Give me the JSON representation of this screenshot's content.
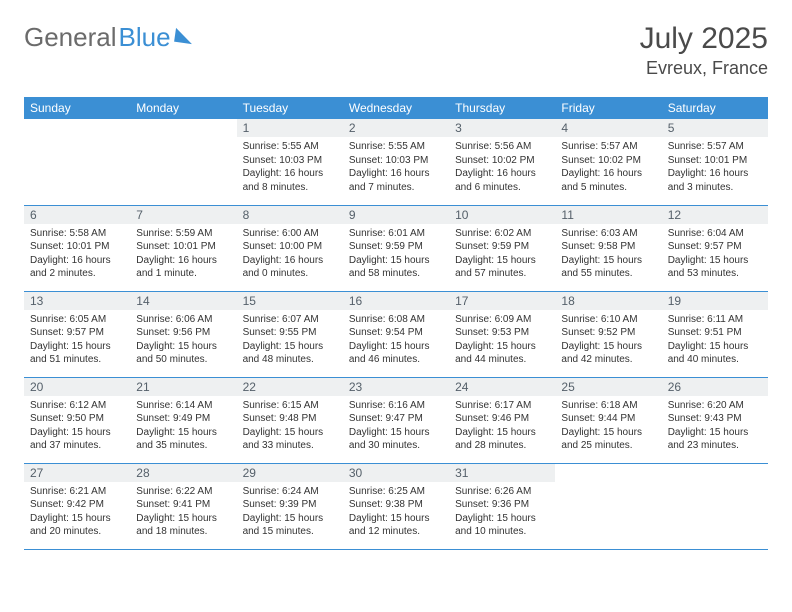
{
  "brand": {
    "part1": "General",
    "part2": "Blue"
  },
  "title": "July 2025",
  "location": "Evreux, France",
  "colors": {
    "header_bg": "#3b8fd4",
    "header_text": "#ffffff",
    "daynum_bg": "#eef0f1",
    "daynum_text": "#55606a",
    "divider": "#3b8fd4",
    "body_text": "#333333",
    "background": "#ffffff"
  },
  "weekdays": [
    "Sunday",
    "Monday",
    "Tuesday",
    "Wednesday",
    "Thursday",
    "Friday",
    "Saturday"
  ],
  "weeks": [
    [
      null,
      null,
      {
        "n": "1",
        "sunrise": "5:55 AM",
        "sunset": "10:03 PM",
        "daylight": "16 hours and 8 minutes."
      },
      {
        "n": "2",
        "sunrise": "5:55 AM",
        "sunset": "10:03 PM",
        "daylight": "16 hours and 7 minutes."
      },
      {
        "n": "3",
        "sunrise": "5:56 AM",
        "sunset": "10:02 PM",
        "daylight": "16 hours and 6 minutes."
      },
      {
        "n": "4",
        "sunrise": "5:57 AM",
        "sunset": "10:02 PM",
        "daylight": "16 hours and 5 minutes."
      },
      {
        "n": "5",
        "sunrise": "5:57 AM",
        "sunset": "10:01 PM",
        "daylight": "16 hours and 3 minutes."
      }
    ],
    [
      {
        "n": "6",
        "sunrise": "5:58 AM",
        "sunset": "10:01 PM",
        "daylight": "16 hours and 2 minutes."
      },
      {
        "n": "7",
        "sunrise": "5:59 AM",
        "sunset": "10:01 PM",
        "daylight": "16 hours and 1 minute."
      },
      {
        "n": "8",
        "sunrise": "6:00 AM",
        "sunset": "10:00 PM",
        "daylight": "16 hours and 0 minutes."
      },
      {
        "n": "9",
        "sunrise": "6:01 AM",
        "sunset": "9:59 PM",
        "daylight": "15 hours and 58 minutes."
      },
      {
        "n": "10",
        "sunrise": "6:02 AM",
        "sunset": "9:59 PM",
        "daylight": "15 hours and 57 minutes."
      },
      {
        "n": "11",
        "sunrise": "6:03 AM",
        "sunset": "9:58 PM",
        "daylight": "15 hours and 55 minutes."
      },
      {
        "n": "12",
        "sunrise": "6:04 AM",
        "sunset": "9:57 PM",
        "daylight": "15 hours and 53 minutes."
      }
    ],
    [
      {
        "n": "13",
        "sunrise": "6:05 AM",
        "sunset": "9:57 PM",
        "daylight": "15 hours and 51 minutes."
      },
      {
        "n": "14",
        "sunrise": "6:06 AM",
        "sunset": "9:56 PM",
        "daylight": "15 hours and 50 minutes."
      },
      {
        "n": "15",
        "sunrise": "6:07 AM",
        "sunset": "9:55 PM",
        "daylight": "15 hours and 48 minutes."
      },
      {
        "n": "16",
        "sunrise": "6:08 AM",
        "sunset": "9:54 PM",
        "daylight": "15 hours and 46 minutes."
      },
      {
        "n": "17",
        "sunrise": "6:09 AM",
        "sunset": "9:53 PM",
        "daylight": "15 hours and 44 minutes."
      },
      {
        "n": "18",
        "sunrise": "6:10 AM",
        "sunset": "9:52 PM",
        "daylight": "15 hours and 42 minutes."
      },
      {
        "n": "19",
        "sunrise": "6:11 AM",
        "sunset": "9:51 PM",
        "daylight": "15 hours and 40 minutes."
      }
    ],
    [
      {
        "n": "20",
        "sunrise": "6:12 AM",
        "sunset": "9:50 PM",
        "daylight": "15 hours and 37 minutes."
      },
      {
        "n": "21",
        "sunrise": "6:14 AM",
        "sunset": "9:49 PM",
        "daylight": "15 hours and 35 minutes."
      },
      {
        "n": "22",
        "sunrise": "6:15 AM",
        "sunset": "9:48 PM",
        "daylight": "15 hours and 33 minutes."
      },
      {
        "n": "23",
        "sunrise": "6:16 AM",
        "sunset": "9:47 PM",
        "daylight": "15 hours and 30 minutes."
      },
      {
        "n": "24",
        "sunrise": "6:17 AM",
        "sunset": "9:46 PM",
        "daylight": "15 hours and 28 minutes."
      },
      {
        "n": "25",
        "sunrise": "6:18 AM",
        "sunset": "9:44 PM",
        "daylight": "15 hours and 25 minutes."
      },
      {
        "n": "26",
        "sunrise": "6:20 AM",
        "sunset": "9:43 PM",
        "daylight": "15 hours and 23 minutes."
      }
    ],
    [
      {
        "n": "27",
        "sunrise": "6:21 AM",
        "sunset": "9:42 PM",
        "daylight": "15 hours and 20 minutes."
      },
      {
        "n": "28",
        "sunrise": "6:22 AM",
        "sunset": "9:41 PM",
        "daylight": "15 hours and 18 minutes."
      },
      {
        "n": "29",
        "sunrise": "6:24 AM",
        "sunset": "9:39 PM",
        "daylight": "15 hours and 15 minutes."
      },
      {
        "n": "30",
        "sunrise": "6:25 AM",
        "sunset": "9:38 PM",
        "daylight": "15 hours and 12 minutes."
      },
      {
        "n": "31",
        "sunrise": "6:26 AM",
        "sunset": "9:36 PM",
        "daylight": "15 hours and 10 minutes."
      },
      null,
      null
    ]
  ],
  "labels": {
    "sunrise_prefix": "Sunrise: ",
    "sunset_prefix": "Sunset: ",
    "daylight_prefix": "Daylight: "
  }
}
